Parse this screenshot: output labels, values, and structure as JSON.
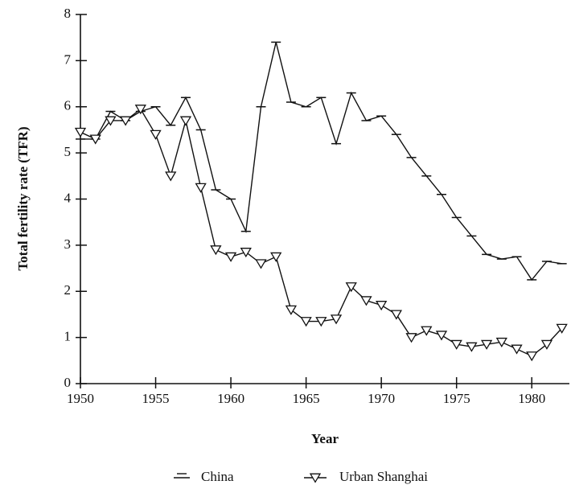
{
  "chart_data": {
    "type": "line",
    "x_label": "Year",
    "y_label": "Total fertility rate (TFR)",
    "x": [
      1950,
      1951,
      1952,
      1953,
      1954,
      1955,
      1956,
      1957,
      1958,
      1959,
      1960,
      1961,
      1962,
      1963,
      1964,
      1965,
      1966,
      1967,
      1968,
      1969,
      1970,
      1971,
      1972,
      1973,
      1974,
      1975,
      1976,
      1977,
      1978,
      1979,
      1980,
      1981,
      1982
    ],
    "series": [
      {
        "name": "China",
        "color": "#111111",
        "marker": "dash",
        "values": [
          5.3,
          5.3,
          5.9,
          5.7,
          5.9,
          6.0,
          5.6,
          6.2,
          5.5,
          4.2,
          4.0,
          3.3,
          6.0,
          7.4,
          6.1,
          6.0,
          6.2,
          5.2,
          6.3,
          5.7,
          5.8,
          5.4,
          4.9,
          4.5,
          4.1,
          3.6,
          3.2,
          2.8,
          2.7,
          2.75,
          2.25,
          2.65,
          2.6
        ]
      },
      {
        "name": "Urban Shanghai",
        "color": "#111111",
        "marker": "triangle-down",
        "values": [
          5.45,
          5.3,
          5.7,
          5.7,
          5.95,
          5.4,
          4.5,
          5.7,
          4.25,
          2.9,
          2.75,
          2.85,
          2.6,
          2.75,
          1.6,
          1.35,
          1.35,
          1.4,
          2.1,
          1.8,
          1.7,
          1.5,
          1.0,
          1.15,
          1.05,
          0.85,
          0.8,
          0.85,
          0.9,
          0.75,
          0.6,
          0.85,
          1.2
        ]
      }
    ],
    "xlim": [
      1950,
      1982.5
    ],
    "xticks": [
      1950,
      1955,
      1960,
      1965,
      1970,
      1975,
      1980
    ],
    "ylim": [
      0,
      8
    ],
    "yticks": [
      0,
      1,
      2,
      3,
      4,
      5,
      6,
      7,
      8
    ],
    "legend": "bottom"
  }
}
